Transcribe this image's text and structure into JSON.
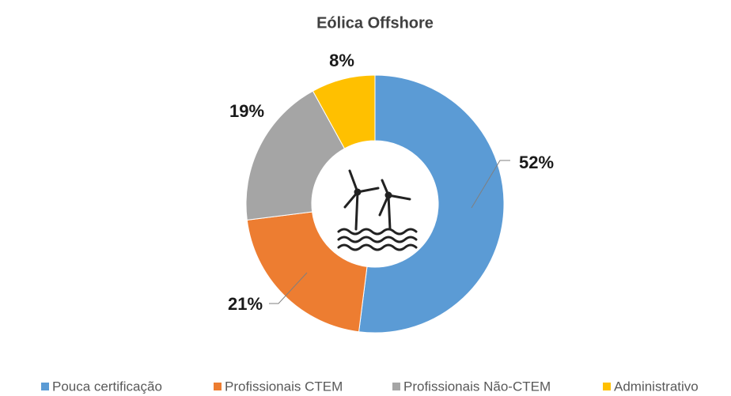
{
  "chart_data": {
    "type": "donut",
    "title": "Eólica Offshore",
    "categories": [
      "Pouca certificação",
      "Profissionais CTEM",
      "Profissionais Não-CTEM",
      "Administrativo"
    ],
    "values": [
      52,
      21,
      19,
      8
    ],
    "value_labels": [
      "52%",
      "21%",
      "19%",
      "8%"
    ],
    "colors": [
      "#5b9bd5",
      "#ed7d31",
      "#a5a5a5",
      "#ffc000"
    ]
  }
}
